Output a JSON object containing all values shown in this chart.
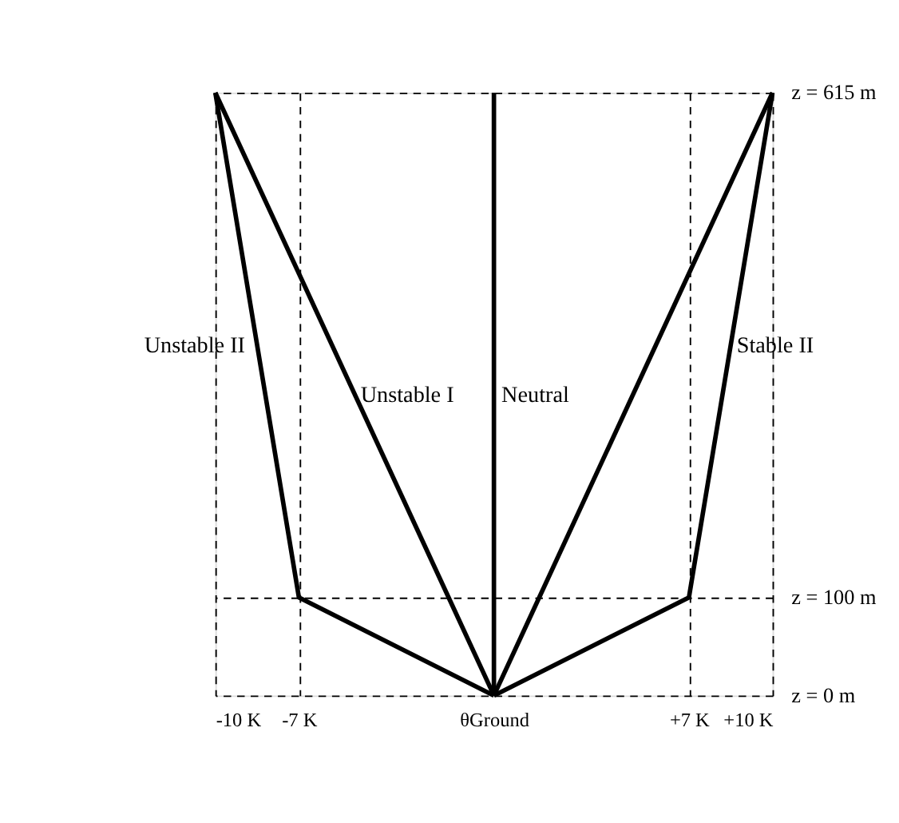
{
  "chart_data": {
    "type": "line",
    "xlim": [
      -10,
      10
    ],
    "ylim": [
      0,
      615
    ],
    "xticks": [
      {
        "value": -10,
        "label": "-10 K"
      },
      {
        "value": -7,
        "label": "-7 K"
      },
      {
        "value": 0,
        "label": "θGround"
      },
      {
        "value": 7,
        "label": "+7 K"
      },
      {
        "value": 10,
        "label": "+10 K"
      }
    ],
    "yticks": [
      {
        "value": 0,
        "label": "z = 0 m"
      },
      {
        "value": 100,
        "label": "z = 100 m"
      },
      {
        "value": 615,
        "label": "z = 615 m"
      }
    ],
    "grid": true,
    "marker": "none",
    "line_style": "solid",
    "series": [
      {
        "name": "Unstable II",
        "color": "#000000",
        "x": [
          0,
          -7,
          -10
        ],
        "values": [
          0,
          100,
          615
        ]
      },
      {
        "name": "Unstable I",
        "color": "#000000",
        "x": [
          0,
          -10
        ],
        "values": [
          0,
          615
        ]
      },
      {
        "name": "Neutral",
        "color": "#000000",
        "x": [
          0,
          0
        ],
        "values": [
          0,
          615
        ]
      },
      {
        "color": "#000000",
        "x": [
          0,
          10
        ],
        "values": [
          0,
          615
        ]
      },
      {
        "name": "Stable II",
        "color": "#000000",
        "x": [
          0,
          7,
          10
        ],
        "values": [
          0,
          100,
          615
        ]
      }
    ]
  }
}
